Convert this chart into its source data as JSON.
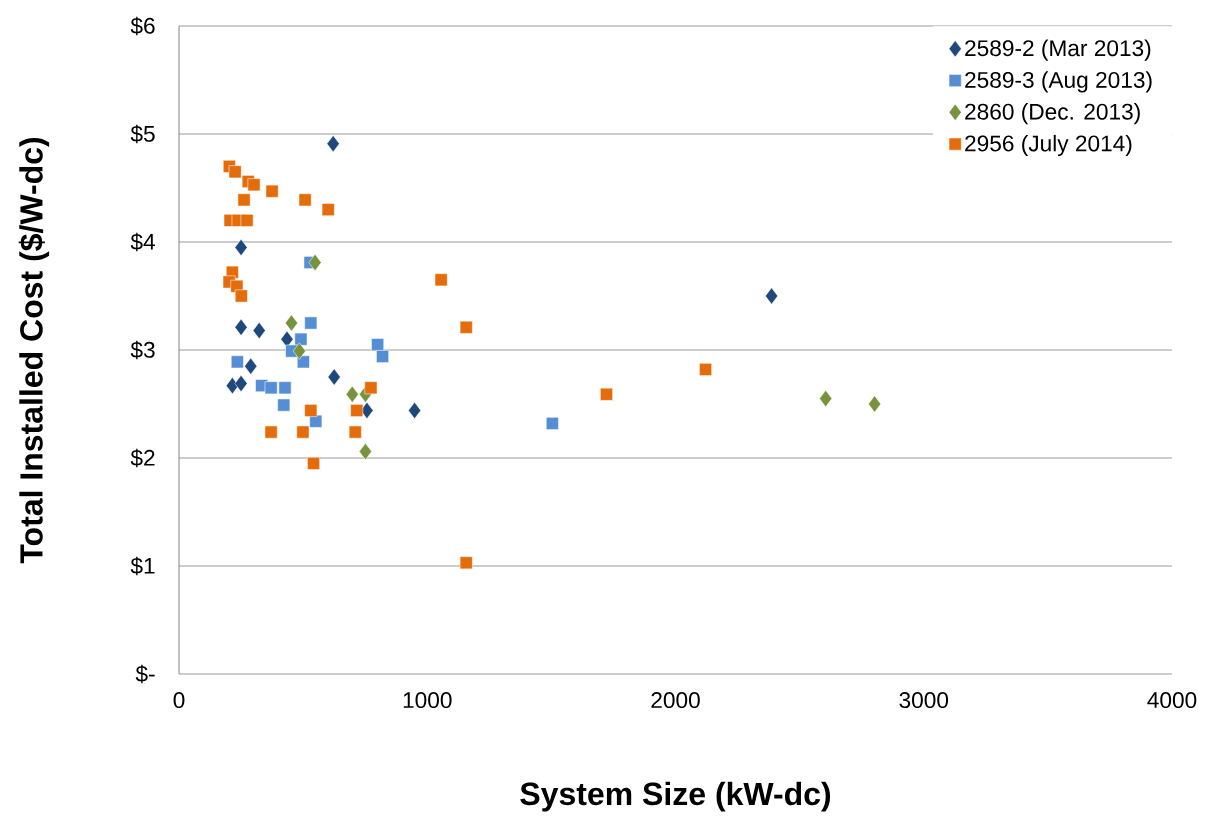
{
  "chart_data": {
    "type": "scatter",
    "xlabel": "System Size (kW-dc)",
    "ylabel": "Total Installed Cost ($/W-dc)",
    "xlim": [
      0,
      4000
    ],
    "xticks": [
      0,
      1000,
      2000,
      3000,
      4000
    ],
    "ylim": [
      0,
      6
    ],
    "yticks": [
      {
        "value": 0,
        "label": "$-"
      },
      {
        "value": 1,
        "label": "$1"
      },
      {
        "value": 2,
        "label": "$2"
      },
      {
        "value": 3,
        "label": "$3"
      },
      {
        "value": 4,
        "label": "$4"
      },
      {
        "value": 5,
        "label": "$5"
      },
      {
        "value": 6,
        "label": "$6"
      }
    ],
    "grid": "y",
    "legend": "top right",
    "series": [
      {
        "name": "2589-2 (Mar 2013)",
        "color": "#1f497d",
        "marker": "diamond",
        "x": [
          621,
          250,
          250,
          323,
          435,
          289,
          215,
          250,
          625,
          757,
          949,
          2387
        ],
        "values": [
          4.91,
          3.95,
          3.21,
          3.18,
          3.1,
          2.85,
          2.67,
          2.69,
          2.75,
          2.44,
          2.44,
          3.5
        ]
      },
      {
        "name": "2589-3 (Aug 2013)",
        "color": "#558ed5",
        "marker": "square",
        "x": [
          528,
          531,
          491,
          454,
          501,
          800,
          820,
          235,
          333,
          371,
          427,
          422,
          551,
          1504
        ],
        "values": [
          3.81,
          3.25,
          3.1,
          2.99,
          2.89,
          3.05,
          2.94,
          2.89,
          2.67,
          2.65,
          2.65,
          2.49,
          2.34,
          2.32
        ]
      },
      {
        "name": "2860 (Dec. 2013)",
        "color": "#77933c",
        "marker": "diamond",
        "x": [
          548,
          453,
          485,
          698,
          751,
          751,
          2605,
          2802
        ],
        "values": [
          3.81,
          3.25,
          2.99,
          2.59,
          2.59,
          2.06,
          2.55,
          2.5
        ]
      },
      {
        "name": "2956 (July 2014)",
        "color": "#e46c0a",
        "marker": "square",
        "x": [
          203,
          226,
          279,
          302,
          375,
          262,
          508,
          601,
          206,
          238,
          274,
          215,
          202,
          233,
          251,
          773,
          531,
          716,
          371,
          499,
          710,
          542,
          1056,
          1157,
          1157,
          1722,
          2121
        ],
        "values": [
          4.7,
          4.65,
          4.56,
          4.53,
          4.47,
          4.39,
          4.39,
          4.3,
          4.2,
          4.2,
          4.2,
          3.72,
          3.63,
          3.59,
          3.5,
          2.65,
          2.44,
          2.44,
          2.24,
          2.24,
          2.24,
          1.95,
          3.65,
          3.21,
          1.03,
          2.59,
          2.82
        ]
      }
    ]
  }
}
